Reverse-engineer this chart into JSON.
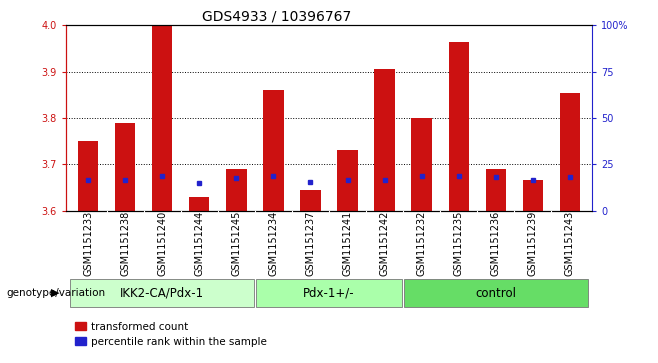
{
  "title": "GDS4933 / 10396767",
  "samples": [
    "GSM1151233",
    "GSM1151238",
    "GSM1151240",
    "GSM1151244",
    "GSM1151245",
    "GSM1151234",
    "GSM1151237",
    "GSM1151241",
    "GSM1151242",
    "GSM1151232",
    "GSM1151235",
    "GSM1151236",
    "GSM1151239",
    "GSM1151243"
  ],
  "red_values": [
    3.75,
    3.79,
    4.0,
    3.63,
    3.69,
    3.86,
    3.645,
    3.73,
    3.905,
    3.8,
    3.965,
    3.69,
    3.665,
    3.855
  ],
  "blue_values": [
    3.665,
    3.665,
    3.675,
    3.66,
    3.67,
    3.675,
    3.662,
    3.665,
    3.665,
    3.675,
    3.675,
    3.672,
    3.665,
    3.672
  ],
  "ymin": 3.6,
  "ymax": 4.0,
  "yticks": [
    3.6,
    3.7,
    3.8,
    3.9,
    4.0
  ],
  "right_yticks": [
    0,
    25,
    50,
    75,
    100
  ],
  "right_ytick_labels": [
    "0",
    "25",
    "50",
    "75",
    "100%"
  ],
  "groups": [
    {
      "label": "IKK2-CA/Pdx-1",
      "start": 0,
      "end": 5,
      "color": "#ccffcc"
    },
    {
      "label": "Pdx-1+/-",
      "start": 5,
      "end": 9,
      "color": "#aaffaa"
    },
    {
      "label": "control",
      "start": 9,
      "end": 14,
      "color": "#66dd66"
    }
  ],
  "bar_color": "#cc1111",
  "blue_color": "#2222cc",
  "bar_width": 0.55,
  "legend_red_label": "transformed count",
  "legend_blue_label": "percentile rank within the sample",
  "genotype_label": "genotype/variation",
  "title_fontsize": 10,
  "tick_fontsize": 7,
  "group_fontsize": 8.5,
  "ylabel_color_red": "#cc1111",
  "ylabel_color_blue": "#2222cc",
  "gray_bg": "#d8d8d8"
}
